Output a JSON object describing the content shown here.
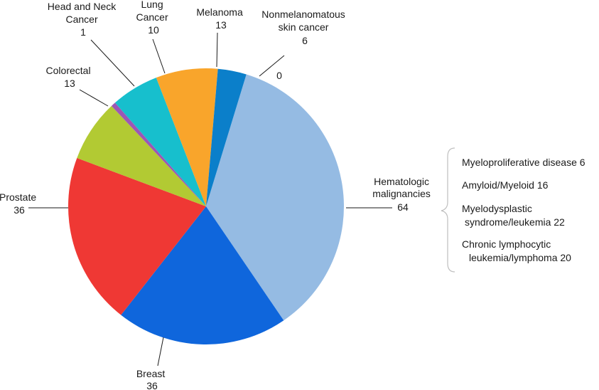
{
  "chart_data": {
    "type": "pie",
    "title": "",
    "slices": [
      {
        "label_lines": [
          "Hematologic",
          "malignancies"
        ],
        "value": 64,
        "color": "#95bbe3"
      },
      {
        "label_lines": [
          "Breast"
        ],
        "value": 36,
        "color": "#0f66dc"
      },
      {
        "label_lines": [
          "Prostate"
        ],
        "value": 36,
        "color": "#ef3834"
      },
      {
        "label_lines": [
          "Colorectal"
        ],
        "value": 13,
        "color": "#b2ca33"
      },
      {
        "label_lines": [
          "Head and Neck",
          "Cancer"
        ],
        "value": 1,
        "color": "#9c57b6"
      },
      {
        "label_lines": [
          "Lung",
          "Cancer"
        ],
        "value": 10,
        "color": "#17bfcd"
      },
      {
        "label_lines": [
          "Melanoma"
        ],
        "value": 13,
        "color": "#f9a52b"
      },
      {
        "label_lines": [
          "Nonmelanomatous",
          "skin cancer"
        ],
        "value": 6,
        "color": "#0b7fca"
      },
      {
        "label_lines": [],
        "value": 0,
        "color": "#000000"
      }
    ],
    "breakdown": {
      "parent": "Hematologic malignancies",
      "items": [
        {
          "lines": [
            "Myeloproliferative disease 6"
          ]
        },
        {
          "lines": [
            "Amyloid/Myeloid 16"
          ]
        },
        {
          "lines": [
            "Myelodysplastic",
            "syndrome/leukemia 22"
          ]
        },
        {
          "lines": [
            "Chronic lymphocytic",
            "leukemia/lymphoma 20"
          ]
        }
      ]
    }
  }
}
